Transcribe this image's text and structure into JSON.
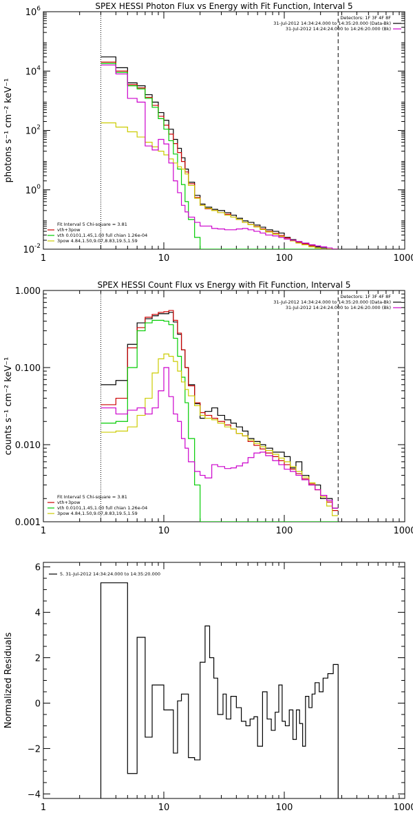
{
  "chart_data": [
    {
      "type": "line",
      "title": "SPEX HESSI Photon Flux vs Energy with Fit Function, Interval 5",
      "ylabel": "photons s⁻¹ cm⁻² keV⁻¹",
      "xlabel": "",
      "xscale": "log",
      "yscale": "log",
      "xlim": [
        1,
        1000
      ],
      "ylim": [
        0.01,
        1000000
      ],
      "xticks": [
        1,
        10,
        100,
        1000
      ],
      "xtick_labels": [
        "1",
        "10",
        "100",
        "1000"
      ],
      "yticks": [
        0.01,
        1,
        100,
        10000,
        1000000
      ],
      "ytick_labels": [
        {
          "base": "10",
          "exp": "-2"
        },
        {
          "base": "10",
          "exp": "0"
        },
        {
          "base": "10",
          "exp": "2"
        },
        {
          "base": "10",
          "exp": "4"
        },
        {
          "base": "10",
          "exp": "6"
        }
      ],
      "vlines": [
        {
          "x": 3,
          "style": "dotted"
        },
        {
          "x": 280,
          "style": "dashed"
        }
      ],
      "legend_top": [
        {
          "text": "Detectors: 1F 3F 4F 8F",
          "color": ""
        },
        {
          "text": "31-Jul-2012 14:34:24.000 to 14:35:20.000 (Data-Bk)",
          "color": "#000000"
        },
        {
          "text": "31-Jul-2012 14:24:24.000 to 14:26:20.000 (Bk)",
          "color": "#cc00cc"
        }
      ],
      "legend_bottom": [
        {
          "text": "Fit Interval 5   Chi-square = 3.81",
          "color": ""
        },
        {
          "text": "vth+3pow",
          "color": "#cc0000"
        },
        {
          "text": "vth 0.0101,1.45,1.00  full chian 1.26e-04",
          "color": "#00cc00"
        },
        {
          "text": "3pow 4.84,1.50,9.07,8.83,19.5,1.59",
          "color": "#cccc00"
        }
      ],
      "edges": [
        3,
        4,
        5,
        6,
        7,
        8,
        9,
        10,
        11,
        12,
        13,
        14,
        15,
        16,
        18,
        20,
        22,
        25,
        28,
        32,
        36,
        40,
        45,
        50,
        56,
        63,
        70,
        80,
        90,
        100,
        112,
        125,
        140,
        160,
        180,
        200,
        225,
        250,
        280
      ],
      "series": [
        {
          "name": "Data-Bk",
          "color": "#000000",
          "values": [
            30000,
            13000,
            4000,
            3200,
            1600,
            900,
            400,
            220,
            110,
            50,
            25,
            12,
            5,
            1.8,
            0.65,
            0.33,
            0.26,
            0.22,
            0.2,
            0.17,
            0.14,
            0.11,
            0.09,
            0.08,
            0.065,
            0.055,
            0.045,
            0.04,
            0.035,
            0.025,
            0.021,
            0.018,
            0.016,
            0.014,
            0.012,
            0.011,
            0.01,
            0.01
          ]
        },
        {
          "name": "vth+3pow",
          "color": "#cc0000",
          "values": [
            20000,
            10000,
            3500,
            2700,
            1300,
            700,
            300,
            150,
            75,
            36,
            18,
            9,
            4,
            1.6,
            0.55,
            0.3,
            0.23,
            0.2,
            0.17,
            0.15,
            0.12,
            0.1,
            0.08,
            0.068,
            0.058,
            0.048,
            0.04,
            0.034,
            0.029,
            0.024,
            0.02,
            0.017,
            0.015,
            0.013,
            0.011,
            0.01,
            0.01,
            0.01
          ]
        },
        {
          "name": "vth",
          "color": "#00cc00",
          "values": [
            18000,
            9000,
            3200,
            2500,
            1200,
            600,
            250,
            110,
            45,
            16,
            5,
            1.5,
            0.4,
            0.1,
            0.025,
            0.01,
            0.01,
            0.01,
            0.01,
            0.01,
            0.01,
            0.01,
            0.01,
            0.01,
            0.01,
            0.01,
            0.01,
            0.01,
            0.01,
            0.01,
            0.01,
            0.01,
            0.01,
            0.01,
            0.01,
            0.01,
            0.01,
            0.01
          ]
        },
        {
          "name": "3pow",
          "color": "#cccc00",
          "values": [
            180,
            130,
            90,
            60,
            40,
            28,
            20,
            15,
            11,
            8,
            6,
            5,
            3.4,
            1.4,
            0.52,
            0.3,
            0.24,
            0.2,
            0.17,
            0.14,
            0.12,
            0.1,
            0.08,
            0.067,
            0.056,
            0.046,
            0.038,
            0.032,
            0.027,
            0.022,
            0.019,
            0.016,
            0.014,
            0.012,
            0.011,
            0.01,
            0.01,
            0.01
          ]
        },
        {
          "name": "Bk",
          "color": "#cc00cc",
          "values": [
            16000,
            8000,
            1200,
            900,
            30,
            22,
            50,
            35,
            8,
            2,
            0.8,
            0.3,
            0.18,
            0.12,
            0.08,
            0.06,
            0.06,
            0.05,
            0.048,
            0.045,
            0.045,
            0.048,
            0.05,
            0.045,
            0.04,
            0.035,
            0.03,
            0.028,
            0.025,
            0.022,
            0.02,
            0.018,
            0.016,
            0.014,
            0.013,
            0.012,
            0.011,
            0.01
          ]
        }
      ]
    },
    {
      "type": "line",
      "title": "SPEX HESSI Count Flux vs Energy with Fit Function, Interval 5",
      "ylabel": "counts s⁻¹ cm⁻² keV⁻¹",
      "xlabel": "",
      "xscale": "log",
      "yscale": "log",
      "xlim": [
        1,
        1000
      ],
      "ylim": [
        0.001,
        1
      ],
      "xticks": [
        1,
        10,
        100,
        1000
      ],
      "xtick_labels": [
        "1",
        "10",
        "100",
        "1000"
      ],
      "yticks": [
        0.001,
        0.01,
        0.1,
        1
      ],
      "ytick_labels": [
        {
          "base": "0.001",
          "exp": ""
        },
        {
          "base": "0.010",
          "exp": ""
        },
        {
          "base": "0.100",
          "exp": ""
        },
        {
          "base": "1.000",
          "exp": ""
        }
      ],
      "vlines": [
        {
          "x": 3,
          "style": "dotted"
        },
        {
          "x": 280,
          "style": "dashed"
        }
      ],
      "legend_top": [
        {
          "text": "Detectors: 1F 3F 4F 8F",
          "color": ""
        },
        {
          "text": "31-Jul-2012 14:34:24.000 to 14:35:20.000 (Data-Bk)",
          "color": "#000000"
        },
        {
          "text": "31-Jul-2012 14:24:24.000 to 14:26:20.000 (Bk)",
          "color": "#cc00cc"
        }
      ],
      "legend_bottom": [
        {
          "text": "Fit Interval 5   Chi-square = 3.81",
          "color": ""
        },
        {
          "text": "vth+3pow",
          "color": "#cc0000"
        },
        {
          "text": "vth 0.0101,1.45,1.00  full chian 1.26e-04",
          "color": "#00cc00"
        },
        {
          "text": "3pow 4.84,1.50,9.07,8.83,19.5,1.59",
          "color": "#cccc00"
        }
      ],
      "edges": [
        3,
        4,
        5,
        6,
        7,
        8,
        9,
        10,
        11,
        12,
        13,
        14,
        15,
        16,
        18,
        20,
        22,
        25,
        28,
        32,
        36,
        40,
        45,
        50,
        56,
        63,
        70,
        80,
        90,
        100,
        112,
        125,
        140,
        160,
        180,
        200,
        225,
        250,
        280
      ],
      "series": [
        {
          "name": "Data-Bk",
          "color": "#000000",
          "values": [
            0.06,
            0.068,
            0.2,
            0.38,
            0.43,
            0.47,
            0.5,
            0.5,
            0.52,
            0.39,
            0.27,
            0.17,
            0.1,
            0.06,
            0.034,
            0.022,
            0.027,
            0.03,
            0.024,
            0.021,
            0.019,
            0.017,
            0.015,
            0.012,
            0.011,
            0.01,
            0.009,
            0.008,
            0.008,
            0.007,
            0.005,
            0.006,
            0.004,
            0.003,
            0.003,
            0.002,
            0.002,
            0.0015
          ]
        },
        {
          "name": "vth+3pow",
          "color": "#cc0000",
          "values": [
            0.033,
            0.04,
            0.18,
            0.33,
            0.45,
            0.49,
            0.52,
            0.53,
            0.55,
            0.41,
            0.28,
            0.17,
            0.1,
            0.058,
            0.035,
            0.026,
            0.024,
            0.022,
            0.02,
            0.018,
            0.016,
            0.014,
            0.013,
            0.011,
            0.0098,
            0.0088,
            0.0078,
            0.007,
            0.0062,
            0.0055,
            0.0048,
            0.0042,
            0.0036,
            0.0031,
            0.0026,
            0.0022,
            0.0018,
            0.0014
          ]
        },
        {
          "name": "vth",
          "color": "#00cc00",
          "values": [
            0.019,
            0.02,
            0.1,
            0.3,
            0.38,
            0.41,
            0.41,
            0.4,
            0.36,
            0.24,
            0.14,
            0.075,
            0.035,
            0.012,
            0.003,
            0.001,
            0.001,
            0.001,
            0.001,
            0.001,
            0.001,
            0.001,
            0.001,
            0.001,
            0.001,
            0.001,
            0.001,
            0.001,
            0.001,
            0.001,
            0.001,
            0.001,
            0.001,
            0.001,
            0.001,
            0.001,
            0.001,
            0.001
          ]
        },
        {
          "name": "3pow",
          "color": "#cccc00",
          "values": [
            0.0145,
            0.015,
            0.017,
            0.024,
            0.04,
            0.085,
            0.13,
            0.15,
            0.14,
            0.12,
            0.09,
            0.065,
            0.052,
            0.043,
            0.032,
            0.024,
            0.022,
            0.021,
            0.019,
            0.017,
            0.016,
            0.014,
            0.013,
            0.0115,
            0.0104,
            0.0094,
            0.0084,
            0.0075,
            0.0067,
            0.006,
            0.0052,
            0.0045,
            0.0038,
            0.0032,
            0.0026,
            0.0021,
            0.0016,
            0.0012
          ]
        },
        {
          "name": "Bk",
          "color": "#cc00cc",
          "values": [
            0.03,
            0.025,
            0.028,
            0.03,
            0.025,
            0.03,
            0.05,
            0.1,
            0.042,
            0.025,
            0.02,
            0.012,
            0.009,
            0.006,
            0.0045,
            0.004,
            0.0037,
            0.0055,
            0.0052,
            0.0049,
            0.005,
            0.0053,
            0.0058,
            0.0068,
            0.0078,
            0.008,
            0.0072,
            0.0062,
            0.0055,
            0.0048,
            0.0045,
            0.004,
            0.0035,
            0.003,
            0.0026,
            0.0022,
            0.0019,
            0.0015
          ]
        }
      ]
    },
    {
      "type": "line",
      "title": "",
      "ylabel": "Normalized Residuals",
      "xlabel": "",
      "xscale": "log",
      "yscale": "linear",
      "xlim": [
        1,
        1000
      ],
      "ylim": [
        -4.2,
        6.2
      ],
      "xticks": [
        1,
        10,
        100,
        1000
      ],
      "xtick_labels": [
        "1",
        "10",
        "100",
        "1000"
      ],
      "yticks": [
        -4,
        -2,
        0,
        2,
        4,
        6
      ],
      "ytick_labels": [
        {
          "base": "−4",
          "exp": ""
        },
        {
          "base": "−2",
          "exp": ""
        },
        {
          "base": "0",
          "exp": ""
        },
        {
          "base": "2",
          "exp": ""
        },
        {
          "base": "4",
          "exp": ""
        },
        {
          "base": "6",
          "exp": ""
        }
      ],
      "vlines": [],
      "legend_top_left": [
        {
          "text": "5. 31-Jul-2012 14:34:24.000 to 14:35:20.000",
          "color": "#000000"
        }
      ],
      "edges": [
        3,
        5,
        6,
        7,
        8,
        10,
        12,
        13,
        14,
        16,
        18,
        20,
        22,
        24,
        26,
        28,
        31,
        33,
        36,
        40,
        44,
        48,
        52,
        56,
        60,
        66,
        72,
        78,
        84,
        90,
        96,
        102,
        110,
        118,
        126,
        134,
        142,
        150,
        160,
        170,
        180,
        195,
        210,
        230,
        255,
        280
      ],
      "series": [
        {
          "name": "Residuals",
          "color": "#000000",
          "values": [
            5.3,
            -3.1,
            2.9,
            -1.5,
            0.8,
            -0.3,
            -2.2,
            0.1,
            0.4,
            -2.4,
            -2.5,
            1.8,
            3.4,
            2.0,
            1.1,
            -0.5,
            0.4,
            -0.7,
            0.3,
            -0.2,
            -0.8,
            -1.0,
            -0.7,
            -0.6,
            -1.9,
            0.5,
            -0.7,
            -1.2,
            -0.4,
            0.8,
            -0.8,
            -1.0,
            -0.3,
            -1.6,
            -0.3,
            -0.9,
            -1.9,
            0.3,
            -0.2,
            0.4,
            0.9,
            0.5,
            1.1,
            1.3,
            1.7
          ]
        }
      ]
    }
  ]
}
